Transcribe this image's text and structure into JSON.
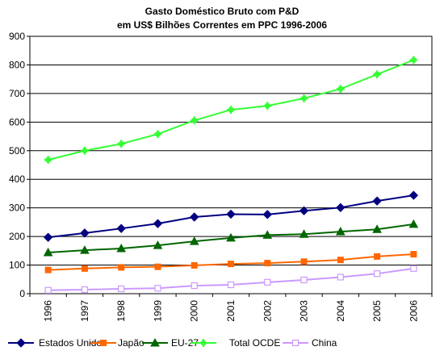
{
  "chart_data": {
    "type": "line",
    "title": "Gasto Doméstico Bruto com P&D",
    "subtitle": "em US$ Bilhões Correntes em PPC 1996-2006",
    "xlabel": "",
    "ylabel": "",
    "ylim": [
      0,
      900
    ],
    "yticks": [
      "0",
      "100",
      "200",
      "300",
      "400",
      "500",
      "600",
      "700",
      "800",
      "900"
    ],
    "categories": [
      "1996",
      "1997",
      "1998",
      "1999",
      "2000",
      "2001",
      "2002",
      "2003",
      "2004",
      "2005",
      "2006"
    ],
    "grid": true,
    "legend_position": "bottom",
    "series": [
      {
        "name": "Estados Unidos",
        "color": "#000080",
        "marker": "diamond",
        "values": [
          197,
          212,
          228,
          245,
          268,
          278,
          277,
          290,
          301,
          324,
          344
        ]
      },
      {
        "name": "Japão",
        "color": "#ff6600",
        "marker": "square",
        "values": [
          83,
          88,
          92,
          94,
          99,
          104,
          107,
          112,
          118,
          130,
          138
        ]
      },
      {
        "name": "EU-27",
        "color": "#006600",
        "marker": "triangle",
        "values": [
          144,
          152,
          158,
          169,
          183,
          195,
          205,
          208,
          217,
          225,
          243
        ]
      },
      {
        "name": "Total OCDE",
        "color": "#33ff33",
        "marker": "star",
        "values": [
          468,
          500,
          524,
          558,
          606,
          643,
          657,
          683,
          716,
          767,
          817
        ]
      },
      {
        "name": "China",
        "color": "#cc99ff",
        "marker": "open-square",
        "values": [
          12,
          14,
          17,
          19,
          28,
          31,
          40,
          48,
          58,
          70,
          88
        ]
      }
    ]
  }
}
